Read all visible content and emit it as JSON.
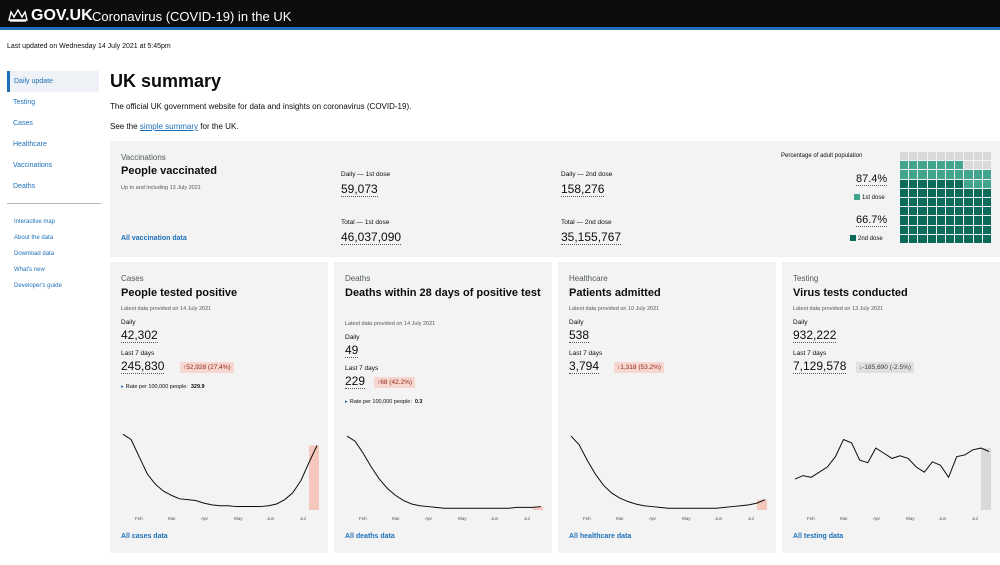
{
  "header": {
    "brand": "GOV.UK",
    "service": "Coronavirus (COVID-19) in the UK",
    "crown_icon": "crown-icon"
  },
  "last_updated": "Last updated on Wednesday 14 July 2021 at 5:45pm",
  "sidebar": {
    "items": [
      {
        "label": "Daily update",
        "active": true
      },
      {
        "label": "Testing"
      },
      {
        "label": "Cases"
      },
      {
        "label": "Healthcare"
      },
      {
        "label": "Vaccinations"
      },
      {
        "label": "Deaths"
      }
    ],
    "secondary": [
      {
        "label": "Interactive map"
      },
      {
        "label": "About the data"
      },
      {
        "label": "Download data"
      },
      {
        "label": "What's new"
      },
      {
        "label": "Developer's guide"
      }
    ]
  },
  "main": {
    "title": "UK summary",
    "intro": "The official UK government website for data and insights on coronavirus (COVID-19).",
    "see_pre": "See the ",
    "see_link": "simple summary",
    "see_post": " for the UK."
  },
  "vaccinations": {
    "category": "Vaccinations",
    "title": "People vaccinated",
    "meta": "Up to and including 13 July 2021",
    "link": "All vaccination data",
    "daily1_label": "Daily — 1st dose",
    "daily1": "59,073",
    "total1_label": "Total — 1st dose",
    "total1": "46,037,090",
    "daily2_label": "Daily — 2nd dose",
    "daily2": "158,276",
    "total2_label": "Total — 2nd dose",
    "total2": "35,155,767",
    "pct_title": "Percentage of adult population",
    "pct1": "87.4%",
    "dose1_label": "1st dose",
    "pct2": "66.7%",
    "dose2_label": "2nd dose",
    "pct1_value": 87.4,
    "pct2_value": 66.7,
    "colors": {
      "first": "#41a48d",
      "second": "#0b6b5a",
      "none": "#d9d9d9"
    }
  },
  "cards": [
    {
      "category": "Cases",
      "title": "People tested positive",
      "meta": "Latest data provided on 14 July 2021",
      "daily_label": "Daily",
      "daily": "42,302",
      "week_label": "Last 7 days",
      "week": "245,830",
      "change": "↑52,928 (27.4%)",
      "change_color": "red",
      "rate_label": "Rate per 100,000 people:",
      "rate": "329.9",
      "link": "All cases data"
    },
    {
      "category": "Deaths",
      "title": "Deaths within 28 days of positive test",
      "meta": "Latest data provided on 14 July 2021",
      "daily_label": "Daily",
      "daily": "49",
      "week_label": "Last 7 days",
      "week": "229",
      "change": "↑68 (42.2%)",
      "change_color": "red",
      "rate_label": "Rate per 100,000 people:",
      "rate": "0.3",
      "link": "All deaths data"
    },
    {
      "category": "Healthcare",
      "title": "Patients admitted",
      "meta": "Latest data provided on 10 July 2021",
      "daily_label": "Daily",
      "daily": "538",
      "week_label": "Last 7 days",
      "week": "3,794",
      "change": "↑1,318 (53.2%)",
      "change_color": "red",
      "link": "All healthcare data"
    },
    {
      "category": "Testing",
      "title": "Virus tests conducted",
      "meta": "Latest data provided on 13 July 2021",
      "daily_label": "Daily",
      "daily": "932,222",
      "week_label": "Last 7 days",
      "week": "7,129,578",
      "change": "↓-185,690 (-2.5%)",
      "change_color": "grey",
      "link": "All testing data"
    }
  ],
  "chart_data": [
    {
      "type": "line",
      "series": [
        {
          "values": [
            0.88,
            0.82,
            0.62,
            0.42,
            0.3,
            0.22,
            0.17,
            0.13,
            0.12,
            0.11,
            0.08,
            0.06,
            0.05,
            0.05,
            0.04,
            0.04,
            0.04,
            0.04,
            0.05,
            0.07,
            0.12,
            0.2,
            0.34,
            0.55,
            0.75
          ]
        }
      ],
      "highlight": "last-week",
      "highlight_color": "#f6c7bd",
      "xticks": [
        "Feb",
        "Mar",
        "Apr",
        "May",
        "Jun",
        "Jul"
      ]
    },
    {
      "type": "line",
      "series": [
        {
          "values": [
            0.86,
            0.8,
            0.66,
            0.5,
            0.36,
            0.25,
            0.17,
            0.11,
            0.07,
            0.05,
            0.04,
            0.03,
            0.02,
            0.02,
            0.02,
            0.02,
            0.02,
            0.02,
            0.02,
            0.02,
            0.02,
            0.03,
            0.03,
            0.03,
            0.04
          ]
        }
      ],
      "highlight": "last-week",
      "highlight_color": "#f6c7bd",
      "xticks": [
        "Feb",
        "Mar",
        "Apr",
        "May",
        "Jun",
        "Jul"
      ]
    },
    {
      "type": "line",
      "series": [
        {
          "values": [
            0.86,
            0.76,
            0.58,
            0.42,
            0.29,
            0.2,
            0.14,
            0.1,
            0.07,
            0.05,
            0.04,
            0.03,
            0.02,
            0.02,
            0.02,
            0.02,
            0.02,
            0.02,
            0.02,
            0.03,
            0.04,
            0.05,
            0.06,
            0.08,
            0.12
          ]
        }
      ],
      "highlight": "last-week",
      "highlight_color": "#f6c7bd",
      "xticks": [
        "Feb",
        "Mar",
        "Apr",
        "May",
        "Jun",
        "Jul"
      ]
    },
    {
      "type": "line",
      "series": [
        {
          "values": [
            0.36,
            0.4,
            0.38,
            0.44,
            0.5,
            0.62,
            0.82,
            0.78,
            0.58,
            0.55,
            0.72,
            0.66,
            0.6,
            0.63,
            0.6,
            0.5,
            0.44,
            0.56,
            0.52,
            0.38,
            0.62,
            0.64,
            0.7,
            0.72,
            0.68
          ]
        }
      ],
      "highlight": "last-week",
      "highlight_color": "#d9d9d9",
      "xticks": [
        "Feb",
        "Mar",
        "Apr",
        "May",
        "Jun",
        "Jul"
      ]
    }
  ]
}
